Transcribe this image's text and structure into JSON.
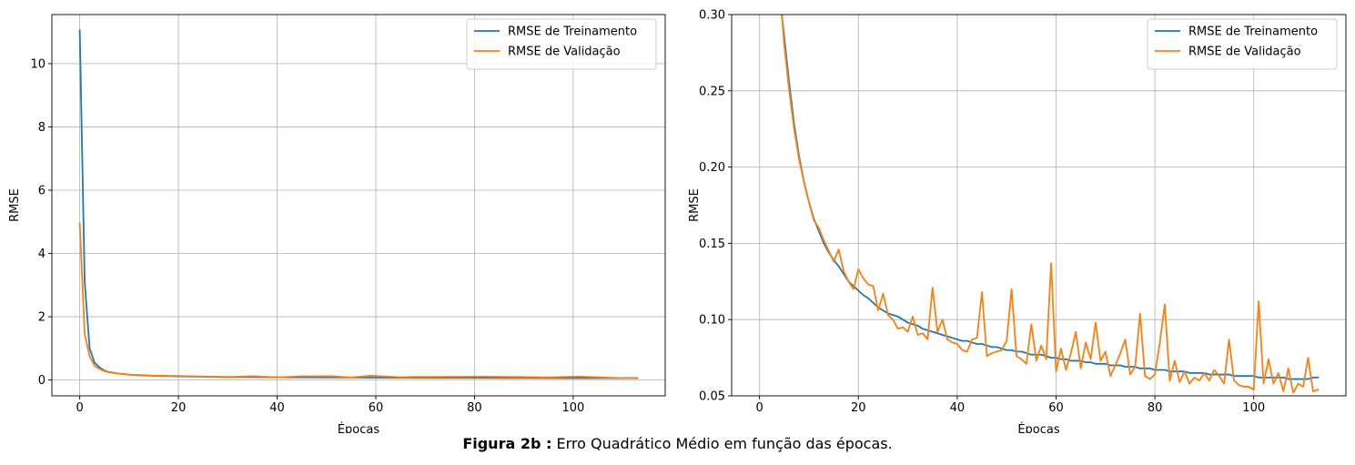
{
  "caption": {
    "label": "Figura 2b :",
    "text": "Erro Quadrático Médio em função das épocas."
  },
  "colors": {
    "train": "#1f77b4",
    "validation": "#ff7f0e",
    "grid": "#b0b0b0",
    "axes": "#000000"
  },
  "chart_data": [
    {
      "type": "line",
      "xlabel": "Épocas",
      "ylabel": "RMSE",
      "xlim": [
        -5.65,
        118.65
      ],
      "ylim": [
        -0.5,
        11.55
      ],
      "xticks": [
        0,
        20,
        40,
        60,
        80,
        100
      ],
      "xtick_labels": [
        "0",
        "20",
        "40",
        "60",
        "80",
        "100"
      ],
      "yticks": [
        0,
        2,
        4,
        6,
        8,
        10
      ],
      "ytick_labels": [
        "0",
        "2",
        "4",
        "6",
        "8",
        "10"
      ],
      "grid": true,
      "legend": "upper right",
      "series": [
        {
          "name": "RMSE de Treinamento",
          "color": "#1f77b4",
          "x": [
            0,
            1,
            2,
            3,
            4,
            5,
            6,
            8,
            10,
            12,
            15,
            20,
            30,
            40,
            60,
            80,
            100,
            113
          ],
          "y": [
            11.05,
            3.1,
            1.0,
            0.55,
            0.4,
            0.3,
            0.25,
            0.2,
            0.17,
            0.15,
            0.135,
            0.115,
            0.095,
            0.085,
            0.075,
            0.068,
            0.063,
            0.062
          ]
        },
        {
          "name": "RMSE de Validação",
          "color": "#ff7f0e",
          "x": [
            0,
            1,
            2,
            3,
            4,
            5,
            6,
            8,
            10,
            12,
            15,
            20,
            30,
            35,
            40,
            45,
            51,
            55,
            59,
            65,
            68,
            77,
            82,
            95,
            101,
            110,
            113
          ],
          "y": [
            4.95,
            1.45,
            0.75,
            0.45,
            0.35,
            0.28,
            0.24,
            0.2,
            0.17,
            0.16,
            0.14,
            0.13,
            0.095,
            0.12,
            0.085,
            0.118,
            0.12,
            0.08,
            0.137,
            0.09,
            0.098,
            0.104,
            0.11,
            0.087,
            0.112,
            0.06,
            0.053
          ]
        }
      ]
    },
    {
      "type": "line",
      "xlabel": "Épocas",
      "ylabel": "RMSE",
      "xlim": [
        -5.65,
        118.65
      ],
      "ylim": [
        0.05,
        0.3
      ],
      "xticks": [
        0,
        20,
        40,
        60,
        80,
        100
      ],
      "xtick_labels": [
        "0",
        "20",
        "40",
        "60",
        "80",
        "100"
      ],
      "yticks": [
        0.05,
        0.1,
        0.15,
        0.2,
        0.25,
        0.3
      ],
      "ytick_labels": [
        "0.05",
        "0.10",
        "0.15",
        "0.20",
        "0.25",
        "0.30"
      ],
      "grid": true,
      "legend": "upper right",
      "series": [
        {
          "name": "RMSE de Treinamento",
          "color": "#1f77b4",
          "x": [
            4.5,
            5,
            6,
            7,
            8,
            9,
            10,
            11,
            12,
            13,
            14,
            15,
            16,
            17,
            18,
            19,
            20,
            21,
            22,
            23,
            24,
            25,
            26,
            27,
            28,
            29,
            30,
            31,
            32,
            33,
            34,
            35,
            36,
            37,
            38,
            39,
            40,
            41,
            42,
            43,
            44,
            45,
            46,
            47,
            48,
            49,
            50,
            51,
            52,
            53,
            54,
            55,
            56,
            57,
            58,
            59,
            60,
            61,
            62,
            63,
            64,
            65,
            66,
            67,
            68,
            69,
            70,
            71,
            72,
            73,
            74,
            75,
            76,
            77,
            78,
            79,
            80,
            81,
            82,
            83,
            84,
            85,
            86,
            87,
            88,
            89,
            90,
            91,
            92,
            93,
            94,
            95,
            96,
            97,
            98,
            99,
            100,
            101,
            102,
            103,
            104,
            105,
            106,
            107,
            108,
            109,
            110,
            111,
            112,
            113
          ],
          "y": [
            0.3,
            0.285,
            0.255,
            0.228,
            0.207,
            0.19,
            0.177,
            0.166,
            0.158,
            0.15,
            0.144,
            0.139,
            0.135,
            0.13,
            0.125,
            0.122,
            0.119,
            0.116,
            0.114,
            0.111,
            0.108,
            0.106,
            0.104,
            0.103,
            0.102,
            0.1,
            0.098,
            0.097,
            0.096,
            0.094,
            0.093,
            0.092,
            0.091,
            0.09,
            0.089,
            0.088,
            0.087,
            0.086,
            0.086,
            0.085,
            0.084,
            0.084,
            0.083,
            0.082,
            0.082,
            0.081,
            0.08,
            0.08,
            0.079,
            0.079,
            0.078,
            0.077,
            0.077,
            0.077,
            0.076,
            0.075,
            0.075,
            0.074,
            0.074,
            0.073,
            0.073,
            0.073,
            0.072,
            0.072,
            0.071,
            0.071,
            0.071,
            0.07,
            0.07,
            0.07,
            0.069,
            0.069,
            0.069,
            0.068,
            0.068,
            0.068,
            0.067,
            0.067,
            0.067,
            0.066,
            0.066,
            0.066,
            0.066,
            0.065,
            0.065,
            0.065,
            0.065,
            0.064,
            0.064,
            0.064,
            0.064,
            0.064,
            0.063,
            0.063,
            0.063,
            0.063,
            0.063,
            0.062,
            0.062,
            0.062,
            0.062,
            0.062,
            0.062,
            0.061,
            0.061,
            0.061,
            0.061,
            0.061,
            0.062,
            0.062
          ]
        },
        {
          "name": "RMSE de Validação",
          "color": "#ff7f0e",
          "x": [
            4.5,
            5,
            6,
            7,
            8,
            9,
            10,
            11,
            12,
            13,
            14,
            15,
            16,
            17,
            18,
            19,
            20,
            21,
            22,
            23,
            24,
            25,
            26,
            27,
            28,
            29,
            30,
            31,
            32,
            33,
            34,
            35,
            36,
            37,
            38,
            39,
            40,
            41,
            42,
            43,
            44,
            45,
            46,
            47,
            48,
            49,
            50,
            51,
            52,
            53,
            54,
            55,
            56,
            57,
            58,
            59,
            60,
            61,
            62,
            63,
            64,
            65,
            66,
            67,
            68,
            69,
            70,
            71,
            72,
            73,
            74,
            75,
            76,
            77,
            78,
            79,
            80,
            81,
            82,
            83,
            84,
            85,
            86,
            87,
            88,
            89,
            90,
            91,
            92,
            93,
            94,
            95,
            96,
            97,
            98,
            99,
            100,
            101,
            102,
            103,
            104,
            105,
            106,
            107,
            108,
            109,
            110,
            111,
            112,
            113
          ],
          "y": [
            0.3,
            0.28,
            0.25,
            0.225,
            0.205,
            0.19,
            0.177,
            0.165,
            0.16,
            0.152,
            0.145,
            0.138,
            0.146,
            0.132,
            0.125,
            0.12,
            0.133,
            0.127,
            0.123,
            0.122,
            0.106,
            0.117,
            0.103,
            0.1,
            0.094,
            0.095,
            0.092,
            0.102,
            0.09,
            0.091,
            0.087,
            0.121,
            0.092,
            0.1,
            0.087,
            0.085,
            0.084,
            0.08,
            0.079,
            0.087,
            0.088,
            0.118,
            0.076,
            0.078,
            0.079,
            0.08,
            0.086,
            0.12,
            0.076,
            0.074,
            0.071,
            0.097,
            0.073,
            0.083,
            0.074,
            0.137,
            0.066,
            0.081,
            0.067,
            0.078,
            0.092,
            0.068,
            0.085,
            0.074,
            0.098,
            0.073,
            0.079,
            0.063,
            0.07,
            0.078,
            0.087,
            0.064,
            0.069,
            0.104,
            0.063,
            0.061,
            0.064,
            0.085,
            0.11,
            0.06,
            0.073,
            0.059,
            0.066,
            0.058,
            0.062,
            0.06,
            0.065,
            0.06,
            0.067,
            0.063,
            0.058,
            0.087,
            0.06,
            0.057,
            0.056,
            0.056,
            0.054,
            0.112,
            0.058,
            0.074,
            0.058,
            0.065,
            0.053,
            0.068,
            0.052,
            0.058,
            0.056,
            0.075,
            0.053,
            0.054
          ]
        }
      ]
    }
  ]
}
